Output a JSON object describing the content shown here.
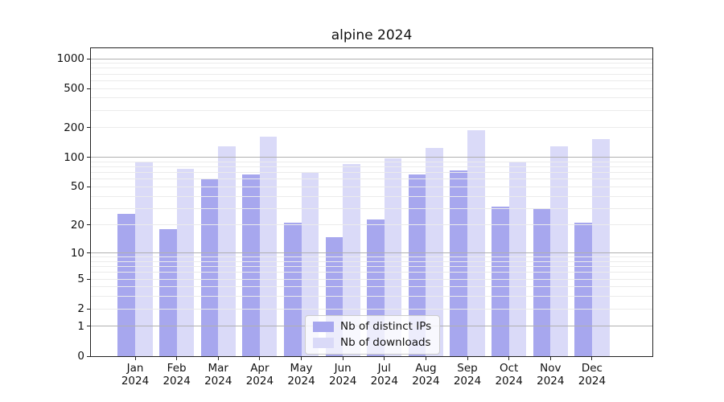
{
  "chart_data": {
    "type": "bar",
    "title": "alpine 2024",
    "categories": [
      "Jan 2024",
      "Feb 2024",
      "Mar 2024",
      "Apr 2024",
      "May 2024",
      "Jun 2024",
      "Jul 2024",
      "Aug 2024",
      "Sep 2024",
      "Oct 2024",
      "Nov 2024",
      "Dec 2024"
    ],
    "series": [
      {
        "name": "Nb of distinct IPs",
        "color": "#a7a7ee",
        "values": [
          26,
          18,
          61,
          67,
          21,
          15,
          23,
          67,
          74,
          31,
          30,
          21
        ]
      },
      {
        "name": "Nb of downloads",
        "color": "#dadaf8",
        "values": [
          91,
          76,
          130,
          162,
          71,
          86,
          97,
          126,
          188,
          91,
          130,
          154
        ]
      }
    ],
    "xlabel": "",
    "ylabel": "",
    "yscale": "log1p",
    "yticks": [
      0,
      1,
      2,
      5,
      10,
      20,
      50,
      100,
      200,
      500,
      1000
    ],
    "ylim": [
      0,
      1276
    ],
    "grid": "on",
    "grid_major_color": "#b0b0b0",
    "grid_minor_color": "#ebebeb",
    "legend_position": "lower center"
  }
}
